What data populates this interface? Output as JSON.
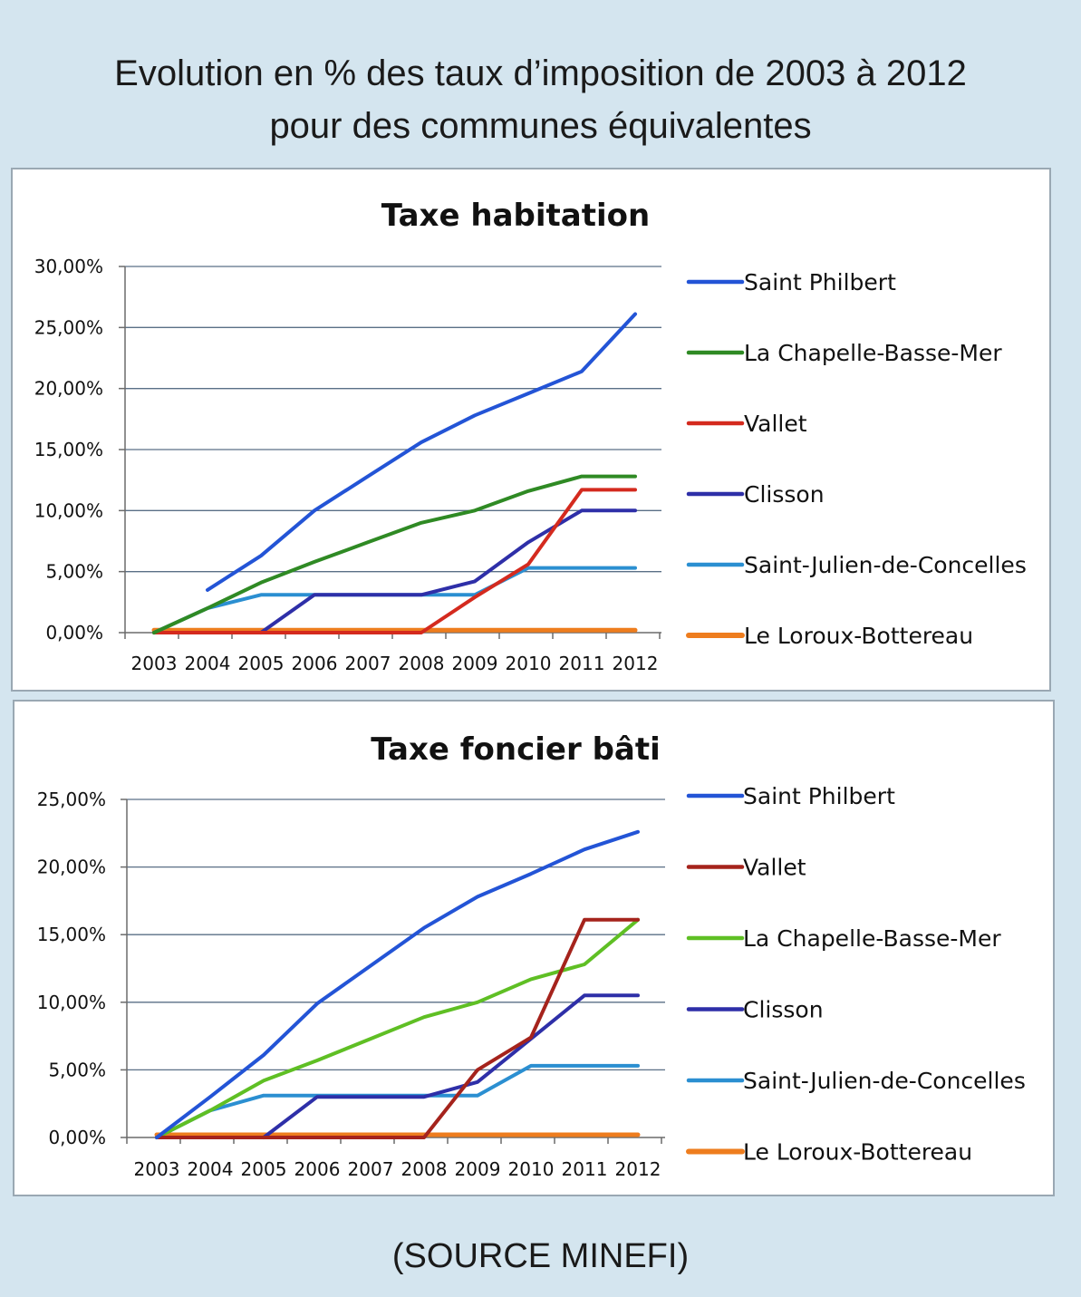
{
  "page_title": {
    "line1": "Evolution en % des taux d’imposition de 2003 à 2012",
    "line2": "pour des communes équivalentes"
  },
  "source": "(SOURCE MINEFI)",
  "chart_data": [
    {
      "type": "line",
      "title": "Taxe habitation",
      "xlabel": "",
      "ylabel": "",
      "x": [
        "2003",
        "2004",
        "2005",
        "2006",
        "2007",
        "2008",
        "2009",
        "2010",
        "2011",
        "2012"
      ],
      "ylim": [
        0,
        30
      ],
      "yticks": [
        "0,00%",
        "5,00%",
        "10,00%",
        "15,00%",
        "20,00%",
        "25,00%",
        "30,00%"
      ],
      "grid": true,
      "legend_position": "right",
      "series": [
        {
          "name": "Saint Philbert",
          "color": "#2354d6",
          "values": [
            null,
            3.5,
            6.3,
            10.0,
            12.8,
            15.6,
            17.8,
            19.6,
            21.4,
            26.1
          ]
        },
        {
          "name": "La Chapelle-Basse-Mer",
          "color": "#2f8a24",
          "values": [
            0,
            2.0,
            4.1,
            5.8,
            7.4,
            9.0,
            10.0,
            11.6,
            12.8,
            12.8
          ]
        },
        {
          "name": "Vallet",
          "color": "#d42a1e",
          "values": [
            0,
            0,
            0,
            0,
            0,
            0,
            2.9,
            5.6,
            11.7,
            11.7
          ]
        },
        {
          "name": "Clisson",
          "color": "#2e2fa8",
          "values": [
            null,
            null,
            0,
            3.1,
            3.1,
            3.1,
            4.2,
            7.4,
            10.0,
            10.0
          ]
        },
        {
          "name": "Saint-Julien-de-Concelles",
          "color": "#2b8fd1",
          "values": [
            0,
            2.0,
            3.1,
            3.1,
            3.1,
            3.1,
            3.1,
            5.3,
            5.3,
            5.3
          ]
        },
        {
          "name": "Le Loroux-Bottereau",
          "color": "#ee7d1e",
          "values": [
            0.2,
            0.2,
            0.2,
            0.2,
            0.2,
            0.2,
            0.2,
            0.2,
            0.2,
            0.2
          ]
        }
      ]
    },
    {
      "type": "line",
      "title": "Taxe foncier bâti",
      "xlabel": "",
      "ylabel": "",
      "x": [
        "2003",
        "2004",
        "2005",
        "2006",
        "2007",
        "2008",
        "2009",
        "2010",
        "2011",
        "2012"
      ],
      "ylim": [
        0,
        25
      ],
      "yticks": [
        "0,00%",
        "5,00%",
        "10,00%",
        "15,00%",
        "20,00%",
        "25,00%"
      ],
      "grid": true,
      "legend_position": "right",
      "series": [
        {
          "name": "Saint Philbert",
          "color": "#2354d6",
          "values": [
            0,
            3.0,
            6.1,
            9.9,
            12.7,
            15.5,
            17.8,
            19.5,
            21.3,
            22.6
          ]
        },
        {
          "name": "Vallet",
          "color": "#a5231c",
          "values": [
            0,
            0,
            0,
            0,
            0,
            0,
            5.0,
            7.4,
            16.1,
            16.1
          ]
        },
        {
          "name": "La Chapelle-Basse-Mer",
          "color": "#5fbf24",
          "values": [
            0,
            2.0,
            4.2,
            5.7,
            7.3,
            8.9,
            10.0,
            11.7,
            12.8,
            16.1
          ]
        },
        {
          "name": "Clisson",
          "color": "#2e2fa8",
          "values": [
            null,
            null,
            0,
            3.0,
            3.0,
            3.0,
            4.1,
            7.3,
            10.5,
            10.5
          ]
        },
        {
          "name": "Saint-Julien-de-Concelles",
          "color": "#2b8fd1",
          "values": [
            0,
            2.0,
            3.1,
            3.1,
            3.1,
            3.1,
            3.1,
            5.3,
            5.3,
            5.3
          ]
        },
        {
          "name": "Le Loroux-Bottereau",
          "color": "#ee7d1e",
          "values": [
            0.2,
            0.2,
            0.2,
            0.2,
            0.2,
            0.2,
            0.2,
            0.2,
            0.2,
            0.2
          ]
        }
      ]
    }
  ]
}
